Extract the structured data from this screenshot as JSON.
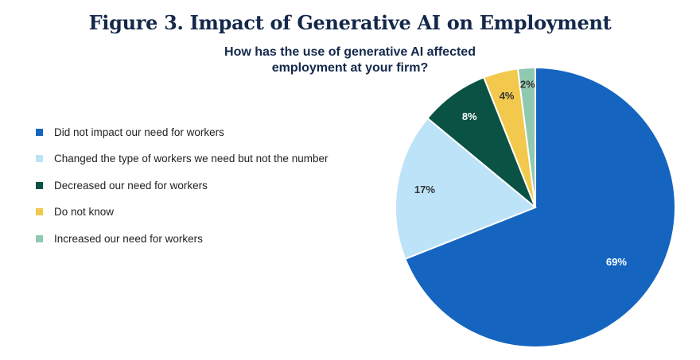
{
  "title": "Figure 3. Impact of Generative AI on Employment",
  "subtitle": "How has the use of generative AI affected employment at your firm?",
  "chart_data": {
    "type": "pie",
    "title": "Figure 3. Impact of Generative AI on Employment",
    "subtitle": "How has the use of generative AI affected employment at your firm?",
    "legend_position": "left",
    "slices": [
      {
        "label": "Did not impact our need for workers",
        "value": 69,
        "display": "69%",
        "color": "#1565c0",
        "label_color": "#ffffff"
      },
      {
        "label": "Changed the type of workers we need but not the number",
        "value": 17,
        "display": "17%",
        "color": "#bde3f8",
        "label_color": "#333333"
      },
      {
        "label": "Decreased our need for workers",
        "value": 8,
        "display": "8%",
        "color": "#0a5243",
        "label_color": "#ffffff"
      },
      {
        "label": "Do not know",
        "value": 4,
        "display": "4%",
        "color": "#f2c94c",
        "label_color": "#333333"
      },
      {
        "label": "Increased our need for workers",
        "value": 2,
        "display": "2%",
        "color": "#8fc9b0",
        "label_color": "#333333"
      }
    ]
  }
}
